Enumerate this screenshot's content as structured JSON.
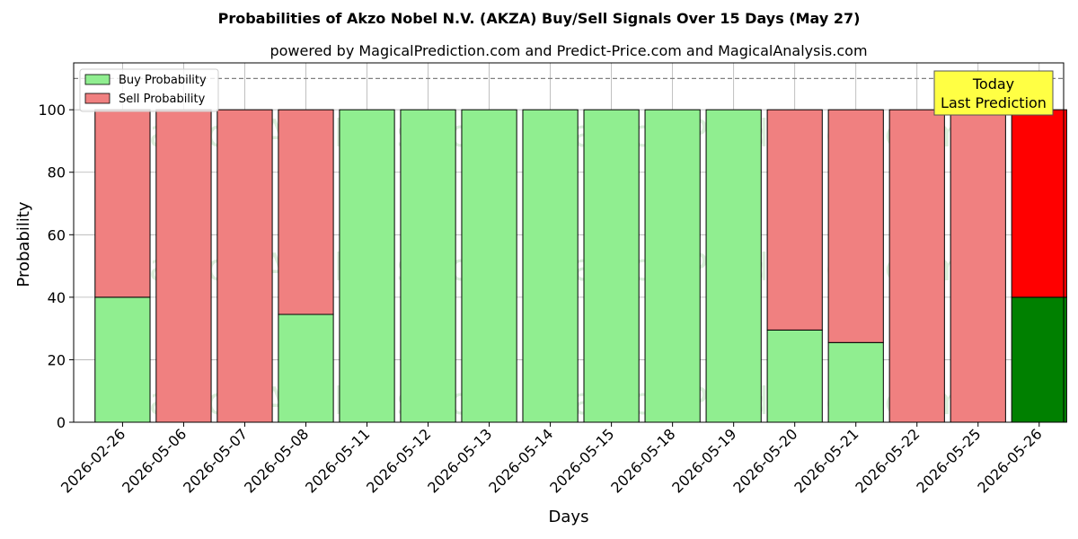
{
  "chart_data": {
    "type": "bar",
    "stacked": true,
    "title": "Probabilities of Akzo Nobel N.V. (AKZA) Buy/Sell Signals Over 15 Days (May 27)",
    "subtitle": "powered by MagicalPrediction.com and Predict-Price.com and MagicalAnalysis.com",
    "xlabel": "Days",
    "ylabel": "Probability",
    "ylim": [
      0,
      115
    ],
    "yticks": [
      "0",
      "20",
      "40",
      "60",
      "80",
      "100"
    ],
    "grid": true,
    "legend_position": "top-left",
    "reference_line": 110,
    "categories": [
      "2026-02-26",
      "2026-05-06",
      "2026-05-07",
      "2026-05-08",
      "2026-05-11",
      "2026-05-12",
      "2026-05-13",
      "2026-05-14",
      "2026-05-15",
      "2026-05-18",
      "2026-05-19",
      "2026-05-20",
      "2026-05-21",
      "2026-05-22",
      "2026-05-25",
      "2026-05-26"
    ],
    "series": [
      {
        "name": "Buy Probability",
        "color": "#90ee90",
        "values": [
          40,
          0,
          0,
          34.5,
          100,
          100,
          100,
          100,
          100,
          100,
          100,
          29.5,
          25.5,
          0,
          0,
          40
        ]
      },
      {
        "name": "Sell Probability",
        "color": "#f08080",
        "values": [
          60,
          100,
          100,
          65.5,
          0,
          0,
          0,
          0,
          0,
          0,
          0,
          70.5,
          74.5,
          100,
          100,
          60
        ]
      }
    ],
    "highlight": {
      "index": 15,
      "buy_color": "#008000",
      "sell_color": "#ff0000"
    },
    "annotation": {
      "line1": "Today",
      "line2": "Last Prediction",
      "bg": "#ffff44"
    },
    "watermarks": [
      "MagicalAnalysis.com",
      "MagicalPrediction.com"
    ]
  }
}
